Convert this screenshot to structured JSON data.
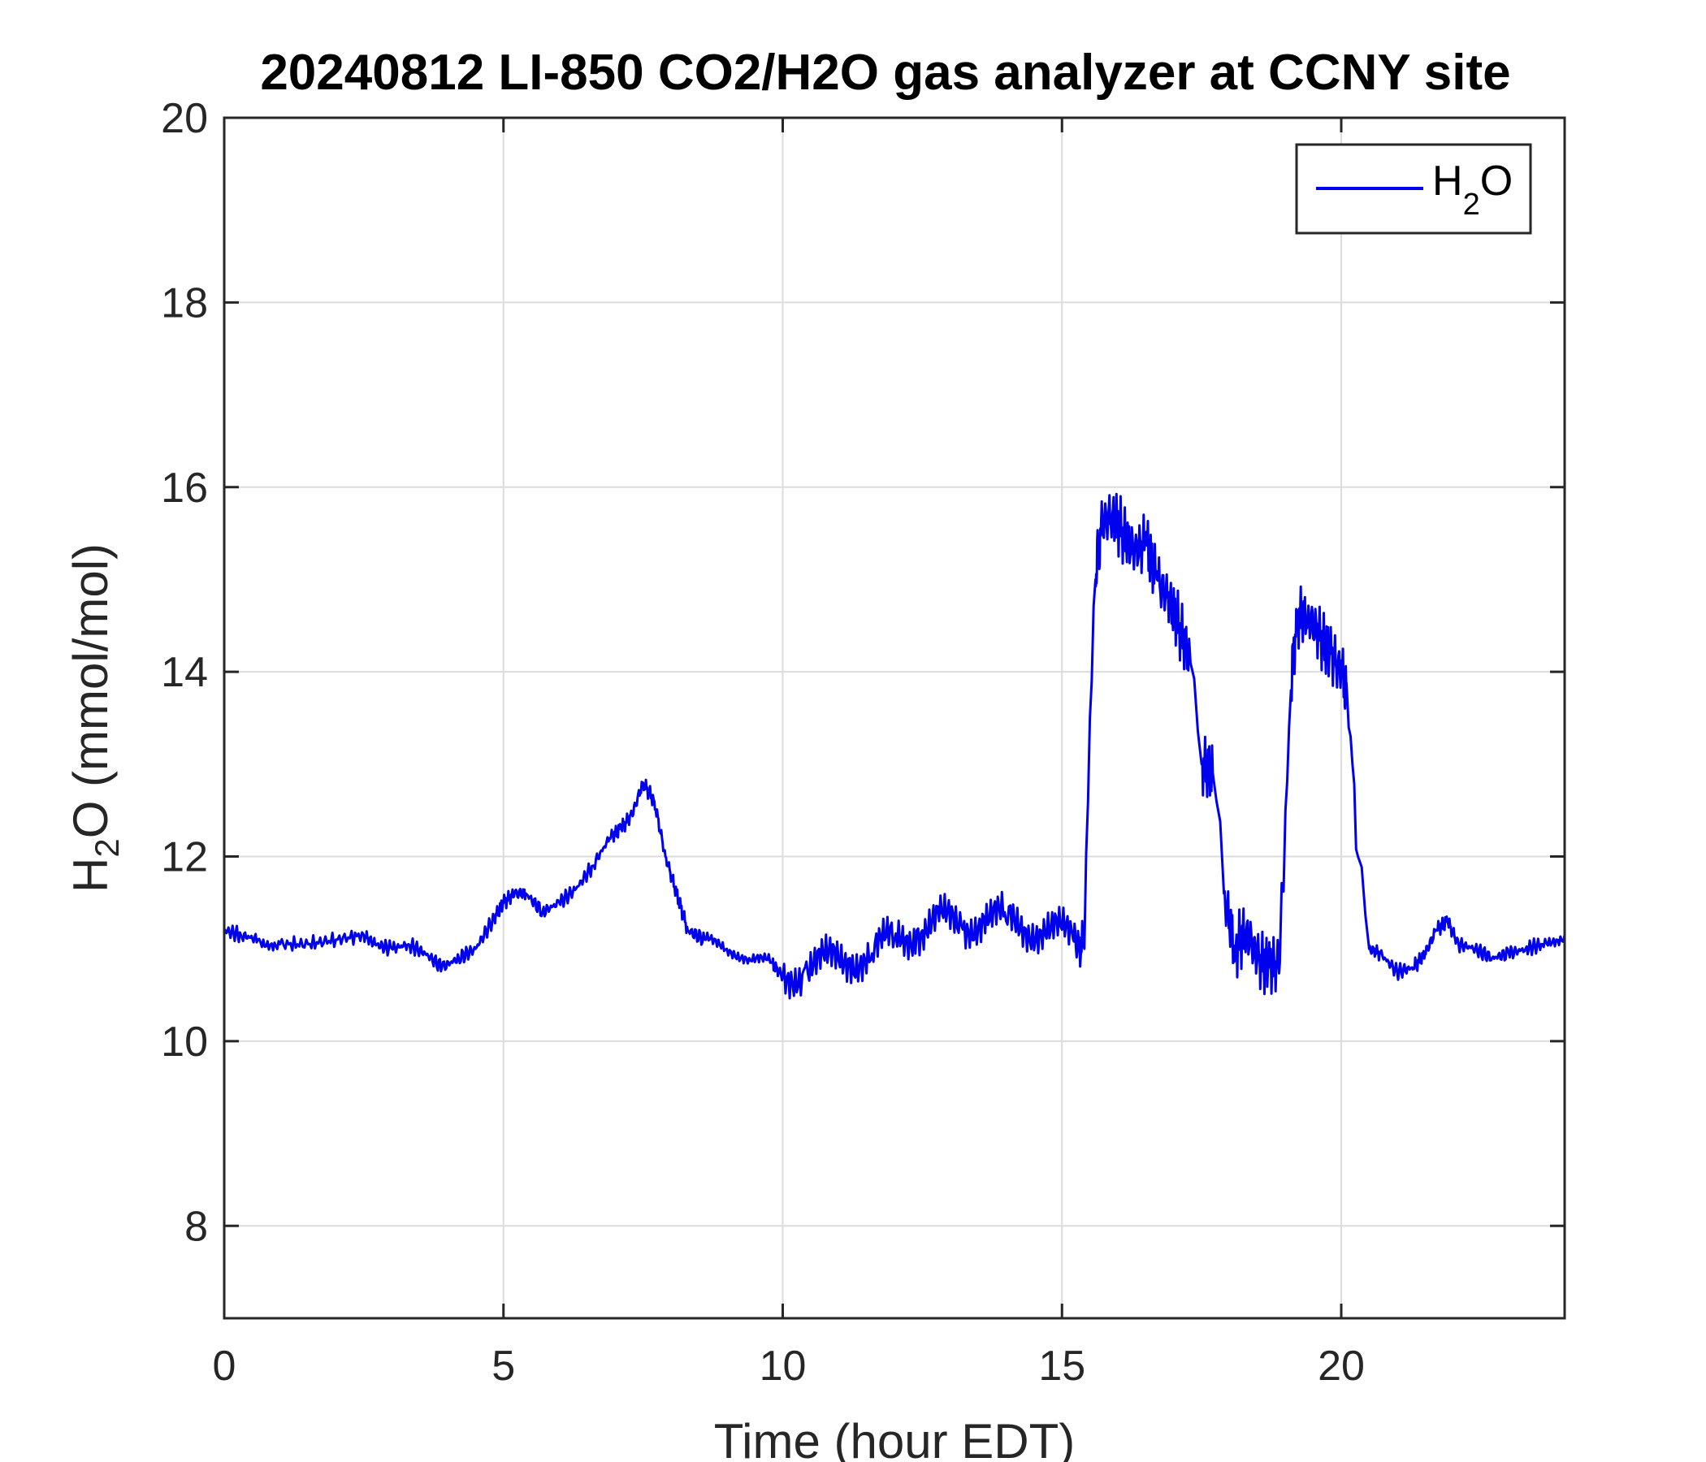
{
  "chart_data": {
    "type": "line",
    "title": "20240812 LI-850 CO2/H2O gas analyzer at CCNY site",
    "xlabel": "Time (hour EDT)",
    "ylabel": {
      "main": "H",
      "sub": "2",
      "rest": "O (mmol/mol)"
    },
    "xlim": [
      0,
      24
    ],
    "ylim": [
      7,
      20
    ],
    "xticks": [
      0,
      5,
      10,
      15,
      20
    ],
    "yticks": [
      8,
      10,
      12,
      14,
      16,
      18,
      20
    ],
    "xtick_labels": [
      "0",
      "5",
      "10",
      "15",
      "20"
    ],
    "ytick_labels": [
      "8",
      "10",
      "12",
      "14",
      "16",
      "18",
      "20"
    ],
    "grid": true,
    "legend": {
      "placement": "top-right",
      "entry": {
        "main": "H",
        "sub": "2",
        "rest": "O"
      }
    },
    "series": [
      {
        "name": "H2O",
        "color": "#0000ee",
        "x": [
          0,
          0.3,
          0.6,
          1.0,
          1.5,
          2.0,
          2.5,
          2.7,
          3.0,
          3.3,
          3.6,
          3.9,
          4.2,
          4.5,
          4.8,
          5.0,
          5.2,
          5.4,
          5.7,
          6.0,
          6.3,
          6.6,
          6.9,
          7.1,
          7.3,
          7.5,
          7.7,
          7.9,
          8.1,
          8.3,
          8.6,
          9.0,
          9.4,
          9.8,
          10.0,
          10.4,
          10.8,
          11.2,
          11.6,
          12.0,
          12.4,
          12.8,
          13.2,
          13.6,
          14.0,
          14.4,
          14.8,
          15.2,
          15.4,
          15.5,
          15.6,
          15.7,
          15.9,
          16.1,
          16.3,
          16.5,
          16.7,
          16.9,
          17.1,
          17.3,
          17.5,
          17.7,
          17.9,
          18.1,
          18.3,
          18.5,
          18.7,
          18.9,
          19.0,
          19.1,
          19.2,
          19.4,
          19.6,
          19.8,
          20.0,
          20.1,
          20.2,
          20.3,
          20.5,
          20.7,
          21.0,
          21.3,
          21.5,
          21.7,
          21.9,
          22.1,
          22.4,
          22.7,
          23.0,
          23.3,
          23.6,
          24.0
        ],
        "y": [
          11.2,
          11.15,
          11.1,
          11.05,
          11.05,
          11.1,
          11.15,
          11.05,
          11.0,
          11.05,
          10.95,
          10.8,
          10.9,
          11.0,
          11.3,
          11.5,
          11.6,
          11.6,
          11.4,
          11.5,
          11.65,
          11.9,
          12.2,
          12.3,
          12.45,
          12.8,
          12.6,
          12.0,
          11.6,
          11.2,
          11.1,
          11.0,
          10.9,
          10.85,
          10.7,
          10.8,
          10.85,
          10.9,
          10.95,
          11.1,
          11.2,
          11.3,
          11.25,
          11.35,
          11.3,
          11.25,
          11.2,
          11.1,
          11.0,
          13.5,
          15.0,
          15.6,
          15.7,
          15.5,
          15.3,
          15.4,
          15.0,
          14.8,
          14.5,
          14.1,
          13.0,
          12.9,
          11.6,
          11.0,
          11.2,
          10.9,
          10.8,
          10.85,
          12.5,
          13.8,
          14.6,
          14.6,
          14.4,
          14.2,
          14.0,
          13.8,
          13.0,
          12.0,
          11.0,
          10.95,
          10.75,
          10.8,
          10.95,
          11.2,
          11.3,
          11.05,
          11.0,
          10.9,
          10.95,
          11.0,
          11.05,
          11.15
        ]
      }
    ]
  }
}
